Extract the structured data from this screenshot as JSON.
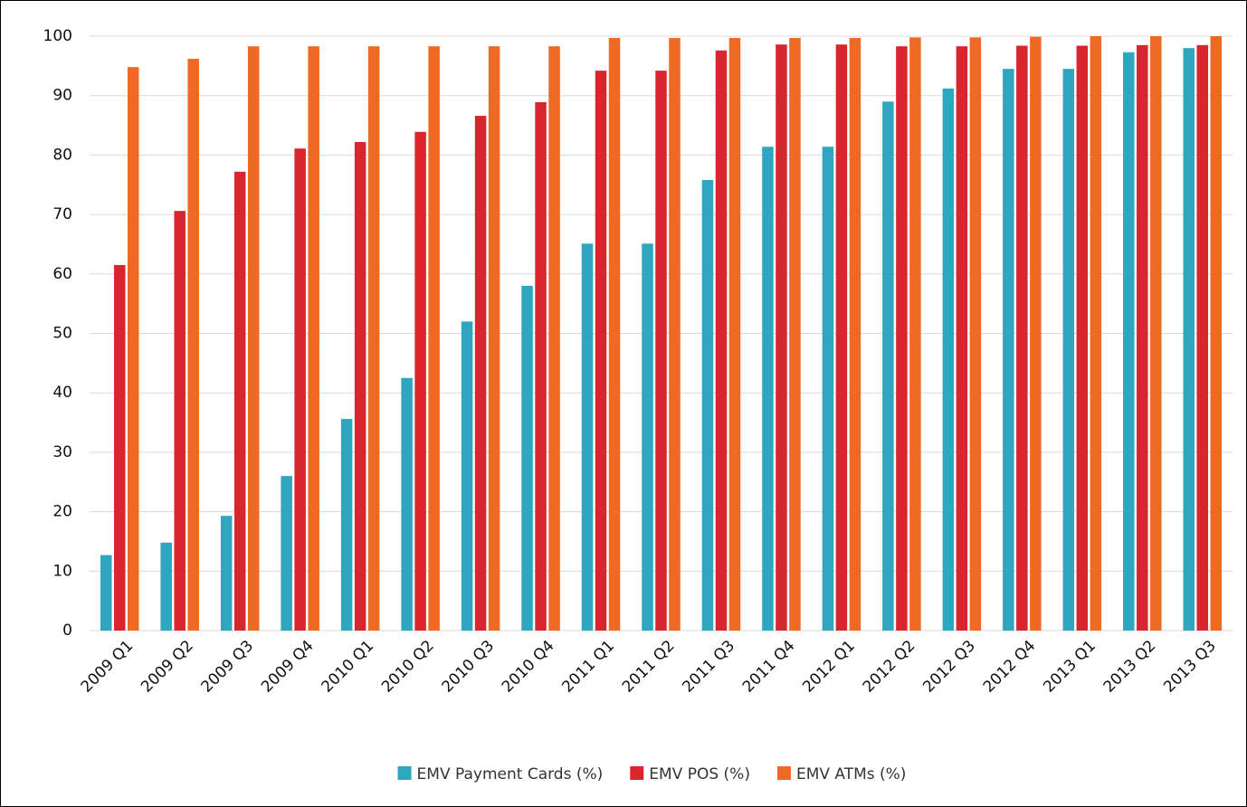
{
  "chart_data": {
    "type": "bar",
    "categories": [
      "2009 Q1",
      "2009 Q2",
      "2009 Q3",
      "2009 Q4",
      "2010 Q1",
      "2010 Q2",
      "2010 Q3",
      "2010 Q4",
      "2011 Q1",
      "2011 Q2",
      "2011 Q3",
      "2011 Q4",
      "2012 Q1",
      "2012 Q2",
      "2012 Q3",
      "2012 Q4",
      "2013 Q1",
      "2013 Q2",
      "2013 Q3"
    ],
    "series": [
      {
        "name": "EMV Payment Cards (%)",
        "color": "#2ea6bf",
        "values": [
          12.7,
          14.8,
          19.3,
          26,
          35.6,
          42.5,
          52,
          58,
          65.1,
          65.1,
          75.8,
          81.4,
          81.4,
          89,
          91.2,
          94.5,
          94.5,
          97.3,
          98
        ]
      },
      {
        "name": "EMV POS (%)",
        "color": "#d9262e",
        "values": [
          61.5,
          70.6,
          77.2,
          81.1,
          82.2,
          83.9,
          86.6,
          88.9,
          94.2,
          94.2,
          97.6,
          98.6,
          98.6,
          98.3,
          98.3,
          98.4,
          98.4,
          98.5,
          98.5
        ]
      },
      {
        "name": "EMV ATMs (%)",
        "color": "#ee6a24",
        "values": [
          94.8,
          96.2,
          98.3,
          98.3,
          98.3,
          98.3,
          98.3,
          98.3,
          99.7,
          99.7,
          99.7,
          99.7,
          99.7,
          99.8,
          99.8,
          99.9,
          100,
          100,
          100
        ]
      }
    ],
    "ylim": [
      0,
      100
    ],
    "yticks": [
      0,
      10,
      20,
      30,
      40,
      50,
      60,
      70,
      80,
      90,
      100
    ],
    "grid": true,
    "legend": "bottom"
  }
}
